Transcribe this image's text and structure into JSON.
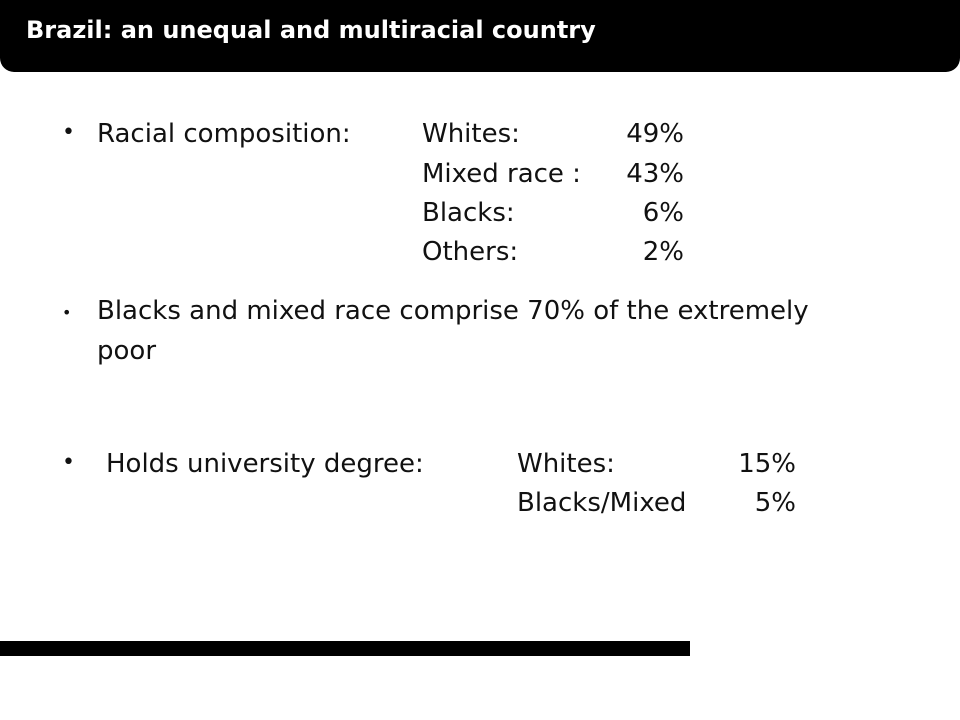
{
  "title": "Brazil: an unequal and multiracial country",
  "racial": {
    "label": "Racial composition:",
    "rows": [
      {
        "group": "Whites:",
        "pct": "49%"
      },
      {
        "group": "Mixed race :",
        "pct": "43%"
      },
      {
        "group": "Blacks:",
        "pct": "6%"
      },
      {
        "group": "Others:",
        "pct": "2%"
      }
    ]
  },
  "poor": {
    "line1": "Blacks and mixed race comprise 70% of the extremely",
    "line2": "poor"
  },
  "university": {
    "label": "Holds university degree:",
    "rows": [
      {
        "group": "Whites:",
        "pct": "15%"
      },
      {
        "group": "Blacks/Mixed",
        "pct": "5%"
      }
    ]
  },
  "bullet_char": "•"
}
